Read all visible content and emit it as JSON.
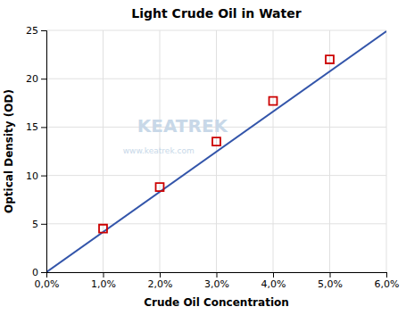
{
  "chart_data": {
    "type": "scatter",
    "title": "Light Crude Oil in Water",
    "xlabel": "Crude Oil Concentration",
    "ylabel": "Optical Density (OD)",
    "series": [
      {
        "type": "line",
        "color": "#3355aa",
        "x": [
          0.0,
          0.06
        ],
        "values": [
          0.0,
          24.9
        ]
      },
      {
        "type": "scatter",
        "marker": "square",
        "color": "#cc0000",
        "x": [
          0.01,
          0.02,
          0.03,
          0.04,
          0.05
        ],
        "values": [
          4.5,
          8.8,
          13.5,
          17.7,
          22.0
        ]
      }
    ],
    "xlim": [
      0.0,
      0.06
    ],
    "ylim": [
      0,
      25
    ],
    "xticks": [
      {
        "value": 0.0,
        "label": "0,0%"
      },
      {
        "value": 0.01,
        "label": "1,0%"
      },
      {
        "value": 0.02,
        "label": "2,0%"
      },
      {
        "value": 0.03,
        "label": "3,0%"
      },
      {
        "value": 0.04,
        "label": "4,0%"
      },
      {
        "value": 0.05,
        "label": "5,0%"
      },
      {
        "value": 0.06,
        "label": "6,0%"
      }
    ],
    "yticks": [
      0,
      5,
      10,
      15,
      20,
      25
    ],
    "grid": true,
    "annotations": [
      {
        "text": "KEATREK",
        "color": "#c8d8e8"
      },
      {
        "text": "www.keatrek.com",
        "color": "#c8d8e8"
      }
    ]
  }
}
